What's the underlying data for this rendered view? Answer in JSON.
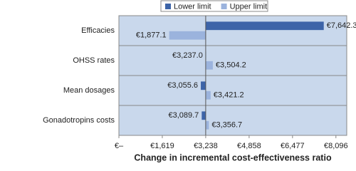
{
  "chart_data": {
    "type": "tornado",
    "x_label": "Change in incremental cost-effectiveness ratio",
    "categories": [
      "Efficacies",
      "OHSS rates",
      "Mean dosages",
      "Gonadotropins costs"
    ],
    "base": 3238,
    "series": [
      {
        "name": "Lower limit",
        "color": "#3d64a8",
        "values": [
          7642.3,
          3237.0,
          3055.6,
          3089.7
        ],
        "value_labels": [
          "€7,642.3",
          "€3,237.0",
          "€3,055.6",
          "€3,089.7"
        ]
      },
      {
        "name": "Upper limit",
        "color": "#9bb3dd",
        "values": [
          1877.1,
          3504.2,
          3421.2,
          3356.7
        ],
        "value_labels": [
          "€1,877.1",
          "€3,504.2",
          "€3,421.2",
          "€3,356.7"
        ]
      }
    ],
    "xlim": [
      0,
      8500
    ],
    "xticks": [
      {
        "value": 0,
        "label": "€–"
      },
      {
        "value": 1619,
        "label": "€1,619"
      },
      {
        "value": 3238,
        "label": "€3,238"
      },
      {
        "value": 4858,
        "label": "€4,858"
      },
      {
        "value": 6477,
        "label": "€6,477"
      },
      {
        "value": 8096,
        "label": "€8,096"
      }
    ],
    "background": "#c9d8ec"
  }
}
